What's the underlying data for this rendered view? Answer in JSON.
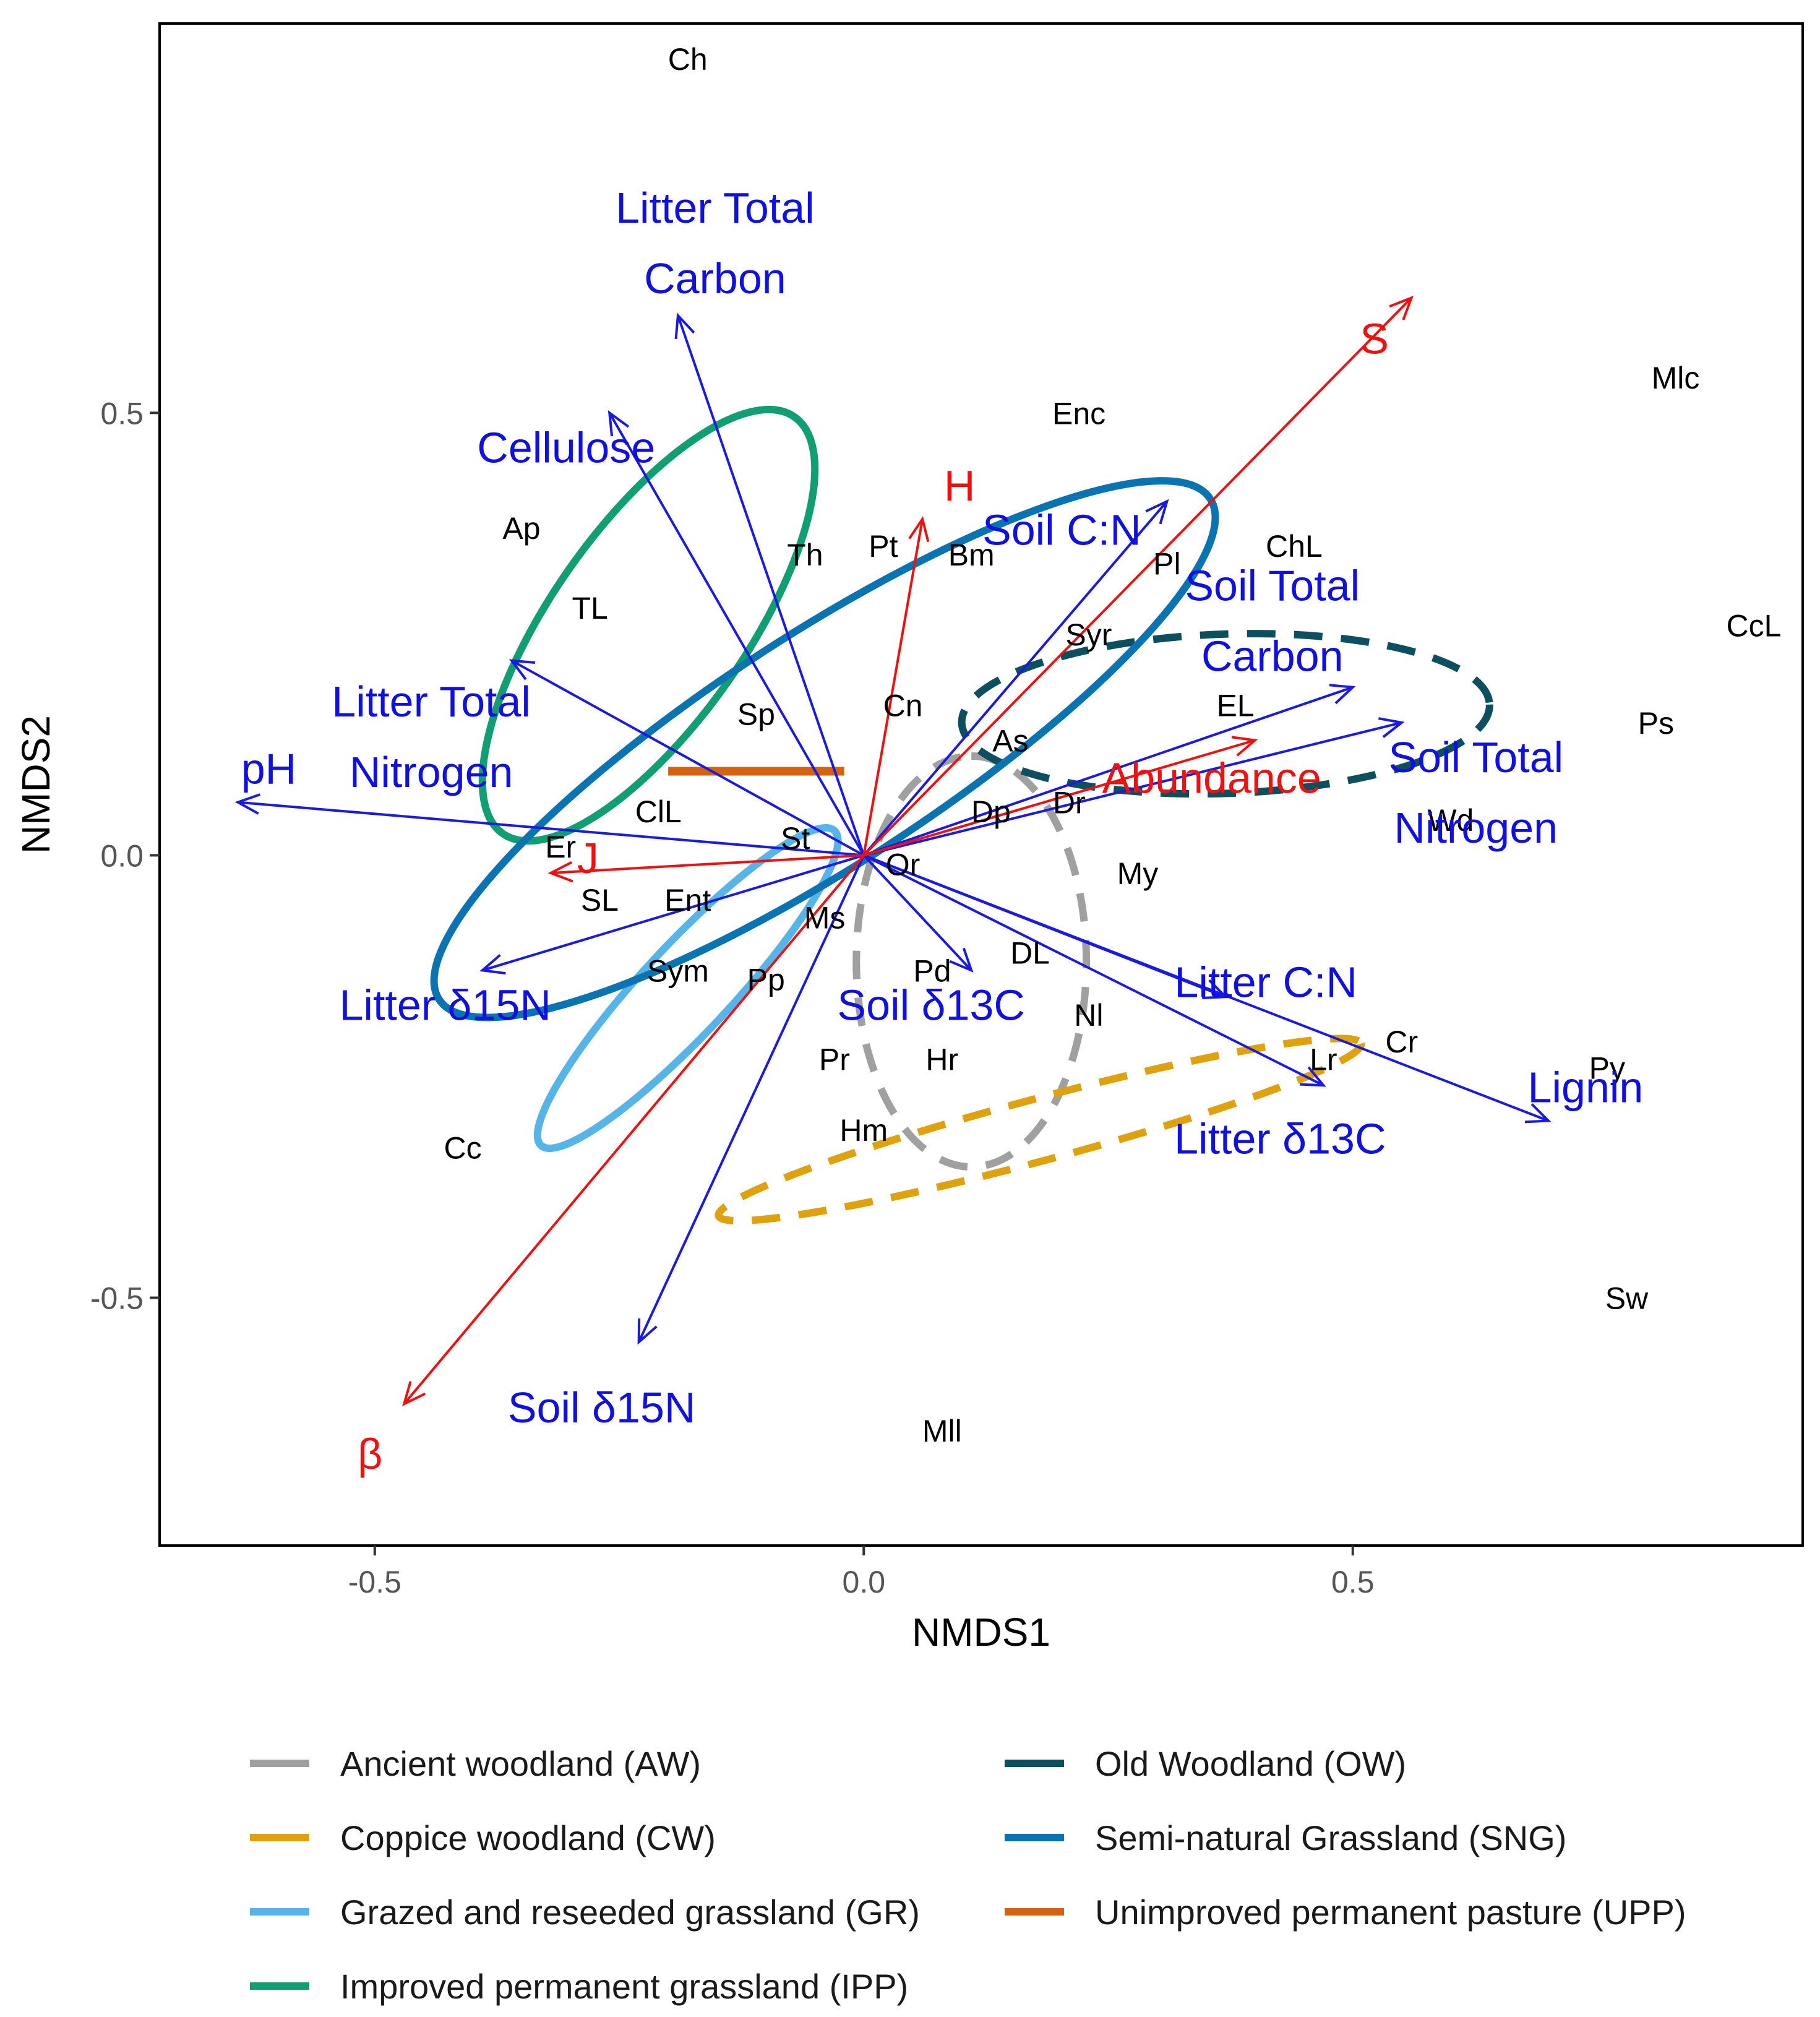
{
  "chart_data": {
    "type": "scatter",
    "xlabel": "NMDS1",
    "ylabel": "NMDS2",
    "xlim": [
      -0.72,
      0.96
    ],
    "ylim": [
      -0.78,
      0.94
    ],
    "x_ticks": [
      {
        "value": -0.5,
        "label": "-0.5"
      },
      {
        "value": 0.0,
        "label": "0.0"
      },
      {
        "value": 0.5,
        "label": "0.5"
      }
    ],
    "y_ticks": [
      {
        "value": -0.5,
        "label": "-0.5"
      },
      {
        "value": 0.0,
        "label": "0.0"
      },
      {
        "value": 0.5,
        "label": "0.5"
      }
    ],
    "grid": false,
    "legend_position": "bottom",
    "colors": {
      "environmental_vectors": "#1a1ae0",
      "diversity_vectors": "#ee1111",
      "species_text": "#000000"
    },
    "species": [
      {
        "label": "Ch",
        "x": -0.18,
        "y": 0.9
      },
      {
        "label": "Mlc",
        "x": 0.83,
        "y": 0.54
      },
      {
        "label": "Enc",
        "x": 0.22,
        "y": 0.5
      },
      {
        "label": "Ap",
        "x": -0.35,
        "y": 0.37
      },
      {
        "label": "Th",
        "x": -0.06,
        "y": 0.34
      },
      {
        "label": "Pt",
        "x": 0.02,
        "y": 0.35
      },
      {
        "label": "Bm",
        "x": 0.11,
        "y": 0.34
      },
      {
        "label": "ChL",
        "x": 0.44,
        "y": 0.35
      },
      {
        "label": "Pl",
        "x": 0.31,
        "y": 0.33
      },
      {
        "label": "TL",
        "x": -0.28,
        "y": 0.28
      },
      {
        "label": "CcL",
        "x": 0.91,
        "y": 0.26
      },
      {
        "label": "Syr",
        "x": 0.23,
        "y": 0.25
      },
      {
        "label": "Sp",
        "x": -0.11,
        "y": 0.16
      },
      {
        "label": "Cn",
        "x": 0.04,
        "y": 0.17
      },
      {
        "label": "EL",
        "x": 0.38,
        "y": 0.17
      },
      {
        "label": "As",
        "x": 0.15,
        "y": 0.13
      },
      {
        "label": "Ps",
        "x": 0.81,
        "y": 0.15
      },
      {
        "label": "ClL",
        "x": -0.21,
        "y": 0.05
      },
      {
        "label": "Dp",
        "x": 0.13,
        "y": 0.05
      },
      {
        "label": "Dr",
        "x": 0.21,
        "y": 0.06
      },
      {
        "label": "Wd",
        "x": 0.6,
        "y": 0.04
      },
      {
        "label": "Er",
        "x": -0.31,
        "y": 0.01
      },
      {
        "label": "St",
        "x": -0.07,
        "y": 0.02
      },
      {
        "label": "Or",
        "x": 0.04,
        "y": -0.01
      },
      {
        "label": "My",
        "x": 0.28,
        "y": -0.02
      },
      {
        "label": "SL",
        "x": -0.27,
        "y": -0.05
      },
      {
        "label": "Ent",
        "x": -0.18,
        "y": -0.05
      },
      {
        "label": "Ms",
        "x": -0.04,
        "y": -0.07
      },
      {
        "label": "DL",
        "x": 0.17,
        "y": -0.11
      },
      {
        "label": "Pd",
        "x": 0.07,
        "y": -0.13
      },
      {
        "label": "Sym",
        "x": -0.19,
        "y": -0.13
      },
      {
        "label": "Pp",
        "x": -0.1,
        "y": -0.14
      },
      {
        "label": "Nl",
        "x": 0.23,
        "y": -0.18
      },
      {
        "label": "Cr",
        "x": 0.55,
        "y": -0.21
      },
      {
        "label": "Pr",
        "x": -0.03,
        "y": -0.23
      },
      {
        "label": "Hr",
        "x": 0.08,
        "y": -0.23
      },
      {
        "label": "Lr",
        "x": 0.47,
        "y": -0.23
      },
      {
        "label": "Py",
        "x": 0.76,
        "y": -0.24
      },
      {
        "label": "Hm",
        "x": 0.0,
        "y": -0.31
      },
      {
        "label": "Cc",
        "x": -0.41,
        "y": -0.33
      },
      {
        "label": "Sw",
        "x": 0.78,
        "y": -0.5
      },
      {
        "label": "Mll",
        "x": 0.08,
        "y": -0.65
      }
    ],
    "environmental_vectors": [
      {
        "label": [
          "Litter Total",
          "Carbon"
        ],
        "x": -0.19,
        "y": 0.61
      },
      {
        "label": [
          "Cellulose"
        ],
        "x": -0.26,
        "y": 0.5
      },
      {
        "label": [
          "Soil C:N"
        ],
        "x": 0.31,
        "y": 0.4
      },
      {
        "label": [
          "Litter Total",
          "Nitrogen"
        ],
        "x": -0.36,
        "y": 0.22
      },
      {
        "label": [
          "pH"
        ],
        "x": -0.64,
        "y": 0.06
      },
      {
        "label": [
          "Soil Total",
          "Carbon"
        ],
        "x": 0.5,
        "y": 0.19
      },
      {
        "label": [
          "Soil Total",
          "Nitrogen"
        ],
        "x": 0.55,
        "y": 0.15
      },
      {
        "label": [
          "Litter δ15N"
        ],
        "x": -0.39,
        "y": -0.13
      },
      {
        "label": [
          "Soil δ13C"
        ],
        "x": 0.11,
        "y": -0.13
      },
      {
        "label": [
          "Litter C:N"
        ],
        "x": 0.37,
        "y": -0.16
      },
      {
        "label": [
          "Litter δ13C"
        ],
        "x": 0.47,
        "y": -0.26
      },
      {
        "label": [
          "Lignin"
        ],
        "x": 0.7,
        "y": -0.3
      },
      {
        "label": [
          "Soil δ15N"
        ],
        "x": -0.23,
        "y": -0.55
      }
    ],
    "diversity_vectors": [
      {
        "label": "S",
        "x": 0.56,
        "y": 0.63
      },
      {
        "label": "H",
        "x": 0.06,
        "y": 0.38
      },
      {
        "label": "Abundance",
        "x": 0.4,
        "y": 0.13
      },
      {
        "label": "J",
        "x": -0.32,
        "y": -0.02
      },
      {
        "label": "β",
        "x": -0.47,
        "y": -0.62
      }
    ],
    "series": [
      {
        "name": "Ancient woodland (AW)",
        "color": "#a0a0a0",
        "dashed": true,
        "ellipse": {
          "cx": 0.11,
          "cy": -0.12,
          "rx": 0.21,
          "ry": 0.13,
          "angle_deg": 90
        }
      },
      {
        "name": "Coppice woodland (CW)",
        "color": "#e0a10e",
        "dashed": true,
        "ellipse": {
          "cx": 0.18,
          "cy": -0.31,
          "rx": 0.34,
          "ry": 0.035,
          "angle_deg": 15
        }
      },
      {
        "name": "Grazed and reseeded grassland (GR)",
        "color": "#56b4e9",
        "dashed": false,
        "ellipse": {
          "cx": -0.18,
          "cy": -0.15,
          "rx": 0.22,
          "ry": 0.05,
          "angle_deg": 47
        }
      },
      {
        "name": "Improved permanent grassland (IPP)",
        "color": "#119e73",
        "dashed": false,
        "ellipse": {
          "cx": -0.22,
          "cy": 0.26,
          "rx": 0.26,
          "ry": 0.11,
          "angle_deg": 55
        }
      },
      {
        "name": "Old Woodland (OW)",
        "color": "#0d4f5e",
        "dashed": true,
        "ellipse": {
          "cx": 0.37,
          "cy": 0.16,
          "rx": 0.27,
          "ry": 0.09,
          "angle_deg": 2
        }
      },
      {
        "name": "Semi-natural Grassland (SNG)",
        "color": "#0a74b2",
        "dashed": false,
        "ellipse": {
          "cx": -0.04,
          "cy": 0.12,
          "rx": 0.47,
          "ry": 0.13,
          "angle_deg": 33
        }
      },
      {
        "name": "Unimproved permanent pasture (UPP)",
        "color": "#d46211",
        "dashed": false,
        "segment": {
          "x1": -0.2,
          "y1": 0.095,
          "x2": -0.02,
          "y2": 0.095
        }
      }
    ]
  }
}
